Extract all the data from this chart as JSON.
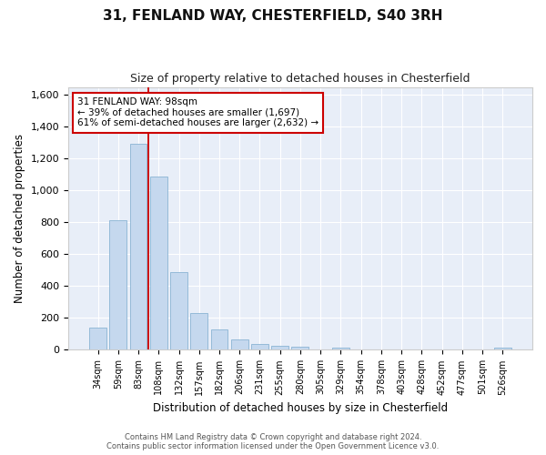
{
  "title1": "31, FENLAND WAY, CHESTERFIELD, S40 3RH",
  "title2": "Size of property relative to detached houses in Chesterfield",
  "xlabel": "Distribution of detached houses by size in Chesterfield",
  "ylabel": "Number of detached properties",
  "categories": [
    "34sqm",
    "59sqm",
    "83sqm",
    "108sqm",
    "132sqm",
    "157sqm",
    "182sqm",
    "206sqm",
    "231sqm",
    "255sqm",
    "280sqm",
    "305sqm",
    "329sqm",
    "354sqm",
    "378sqm",
    "403sqm",
    "428sqm",
    "452sqm",
    "477sqm",
    "501sqm",
    "526sqm"
  ],
  "values": [
    140,
    815,
    1295,
    1090,
    490,
    230,
    130,
    65,
    38,
    25,
    18,
    0,
    15,
    0,
    0,
    0,
    0,
    0,
    0,
    0,
    15
  ],
  "bar_color": "#c5d8ee",
  "bar_edge_color": "#8ab4d4",
  "vline_color": "#cc0000",
  "annotation_line1": "31 FENLAND WAY: 98sqm",
  "annotation_line2": "← 39% of detached houses are smaller (1,697)",
  "annotation_line3": "61% of semi-detached houses are larger (2,632) →",
  "annotation_box_color": "#ffffff",
  "annotation_box_edge": "#cc0000",
  "ylim": [
    0,
    1650
  ],
  "yticks": [
    0,
    200,
    400,
    600,
    800,
    1000,
    1200,
    1400,
    1600
  ],
  "footnote1": "Contains HM Land Registry data © Crown copyright and database right 2024.",
  "footnote2": "Contains public sector information licensed under the Open Government Licence v3.0.",
  "bg_color": "#ffffff",
  "plot_bg_color": "#e8eef8"
}
